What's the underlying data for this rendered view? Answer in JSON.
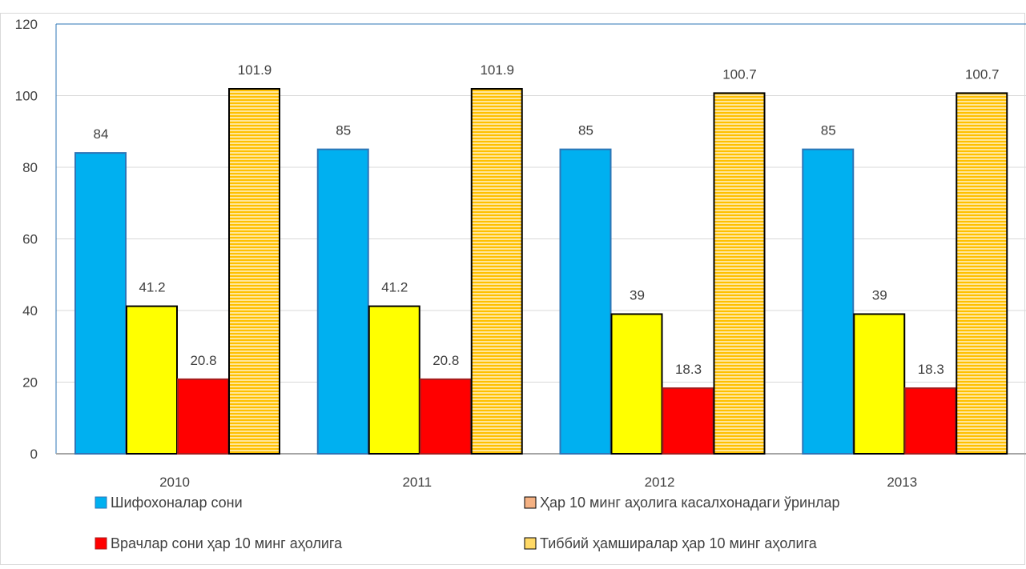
{
  "chart_data": {
    "type": "bar",
    "categories": [
      "2010",
      "2011",
      "2012",
      "2013"
    ],
    "series": [
      {
        "name": "Шифохоналар сони",
        "values": [
          84,
          85,
          85,
          85
        ],
        "color": "#00B0F0",
        "stroke": "#2E75B6",
        "pattern": "none"
      },
      {
        "name": "Ҳар 10  минг  аҳолига касалхонадаги ўринлар",
        "values": [
          41.2,
          41.2,
          39,
          39
        ],
        "color": "#FFFF00",
        "stroke": "#000000",
        "pattern": "none",
        "legend_color": "#F4B183"
      },
      {
        "name": "Врачлар сони ҳар 10 минг аҳолига",
        "values": [
          20.8,
          20.8,
          18.3,
          18.3
        ],
        "color": "#FF0000",
        "stroke": "#A61C1C",
        "pattern": "none"
      },
      {
        "name": "Тиббий  ҳамширалар ҳар 10 минг аҳолига",
        "values": [
          101.9,
          101.9,
          100.7,
          100.7
        ],
        "color": "#FFD966",
        "stroke": "#000000",
        "pattern": "horizontal-stripes",
        "stripe_color": "#FFC000"
      }
    ],
    "data_labels": [
      [
        "84",
        "85",
        "85",
        "85"
      ],
      [
        "41.2",
        "41.2",
        "39",
        "39"
      ],
      [
        "20.8",
        "20.8",
        "18.3",
        "18.3"
      ],
      [
        "101.9",
        "101.9",
        "100.7",
        "100.7"
      ]
    ],
    "y_ticks": [
      "0",
      "20",
      "40",
      "60",
      "80",
      "100",
      "120"
    ],
    "ylim": [
      0,
      120
    ],
    "grid": true,
    "legend_position": "bottom",
    "title": "",
    "xlabel": "",
    "ylabel": ""
  }
}
